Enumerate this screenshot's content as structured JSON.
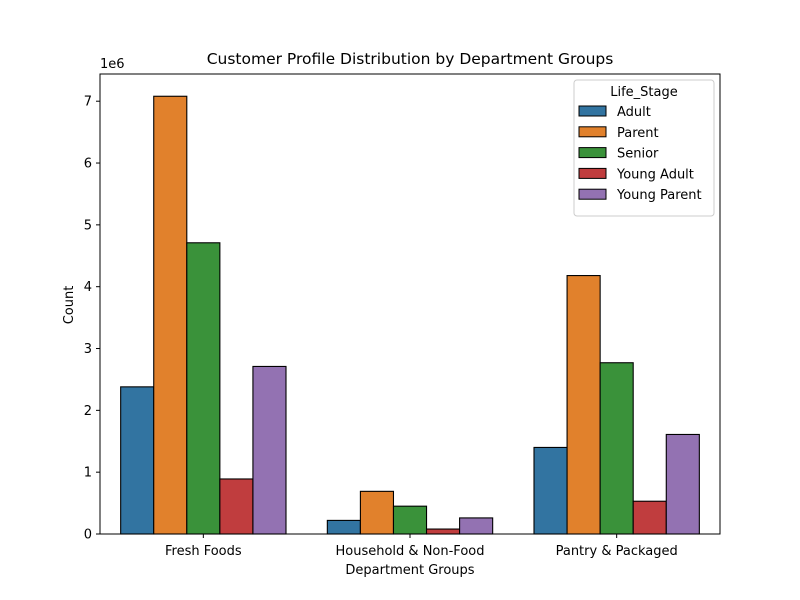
{
  "chart_data": {
    "type": "bar",
    "title": "Customer Profile Distribution by Department Groups",
    "xlabel": "Department Groups",
    "ylabel": "Count",
    "y_scale_label": "1e6",
    "y_multiplier": 1000000,
    "ylim": [
      0,
      7440000
    ],
    "yticks": [
      0,
      1,
      2,
      3,
      4,
      5,
      6,
      7
    ],
    "grid": false,
    "legend_title": "Life_Stage",
    "legend_position": "top-right",
    "categories": [
      "Fresh Foods",
      "Household & Non-Food",
      "Pantry & Packaged"
    ],
    "series": [
      {
        "name": "Adult",
        "color": "#3274a1",
        "values": [
          2380000,
          220000,
          1400000
        ]
      },
      {
        "name": "Parent",
        "color": "#e1812c",
        "values": [
          7080000,
          690000,
          4180000
        ]
      },
      {
        "name": "Senior",
        "color": "#3a923a",
        "values": [
          4710000,
          450000,
          2770000
        ]
      },
      {
        "name": "Young Adult",
        "color": "#c03d3e",
        "values": [
          890000,
          80000,
          530000
        ]
      },
      {
        "name": "Young Parent",
        "color": "#9372b2",
        "values": [
          2710000,
          260000,
          1610000
        ]
      }
    ]
  }
}
